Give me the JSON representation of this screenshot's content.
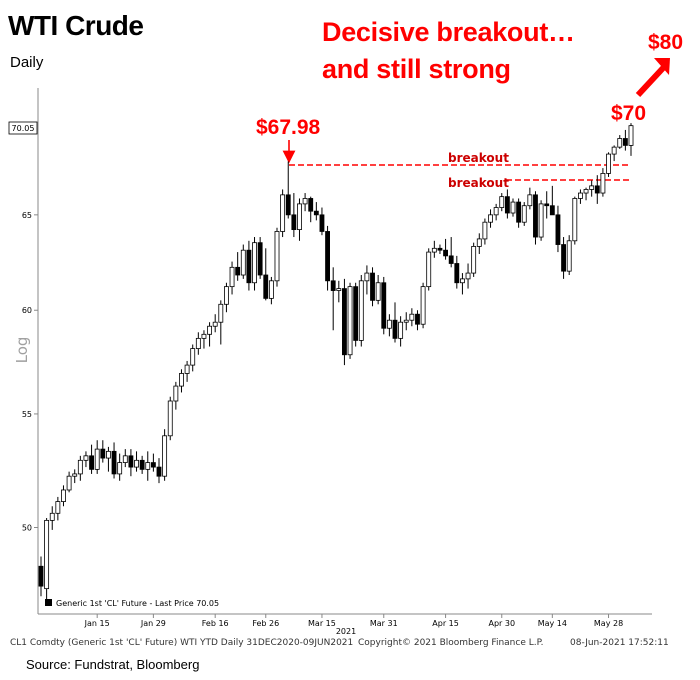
{
  "header": {
    "title": "WTI Crude",
    "subtitle": "Daily",
    "headline_line1": "Decisive breakout…",
    "headline_line2": "and still strong"
  },
  "annotations": {
    "target_80": "$80",
    "level_70": "$70",
    "peak_price": "$67.98",
    "breakout_upper": "breakout",
    "breakout_lower": "breakout",
    "last_price_tag": "70.05"
  },
  "legend": {
    "label": "Generic 1st 'CL' Future - Last Price 70.05"
  },
  "footer": {
    "left": "CL1 Comdty (Generic 1st 'CL' Future) WTI YTD  Daily 31DEC2020-09JUN2021",
    "center": "Copyright© 2021 Bloomberg Finance L.P.",
    "right": "08-Jun-2021 17:52:11"
  },
  "source": "Source: Fundstrat, Bloomberg",
  "colors": {
    "accent": "#ff0000",
    "candle_down": "#000000",
    "candle_up": "#ffffff"
  },
  "chart_data": {
    "type": "candlestick",
    "title": "WTI Crude",
    "subtitle": "Daily",
    "ylabel": "Log",
    "y_scale": "log",
    "ylim": [
      46.5,
      72.3
    ],
    "yticks": [
      50,
      55,
      60,
      65
    ],
    "x_tick_labels": [
      "Jan 15",
      "Jan 29",
      "Feb 16",
      "Feb 26",
      "Mar 15",
      "Mar 31",
      "Apr 15",
      "Apr 30",
      "May 14",
      "May 28"
    ],
    "x_year_label": "2021",
    "x_tick_index": [
      10,
      20,
      31,
      40,
      50,
      61,
      72,
      82,
      91,
      101
    ],
    "last_price": 70.05,
    "resistance_levels": [
      67.5,
      66.7
    ],
    "candles": [
      [
        48.4,
        48.8,
        47.2,
        47.6
      ],
      [
        47.5,
        50.4,
        47.0,
        50.3
      ],
      [
        50.3,
        50.9,
        49.9,
        50.6
      ],
      [
        50.6,
        51.3,
        50.3,
        51.1
      ],
      [
        51.1,
        51.8,
        50.9,
        51.6
      ],
      [
        51.6,
        52.4,
        51.5,
        52.2
      ],
      [
        52.2,
        52.5,
        51.9,
        52.3
      ],
      [
        52.3,
        53.1,
        52.0,
        52.9
      ],
      [
        52.9,
        53.3,
        52.6,
        53.1
      ],
      [
        53.1,
        53.6,
        52.3,
        52.5
      ],
      [
        52.5,
        53.8,
        52.3,
        53.4
      ],
      [
        53.4,
        53.8,
        52.8,
        53.0
      ],
      [
        53.0,
        53.5,
        52.4,
        53.3
      ],
      [
        53.3,
        53.7,
        52.1,
        52.3
      ],
      [
        52.3,
        53.2,
        52.0,
        52.8
      ],
      [
        52.8,
        53.4,
        52.6,
        53.1
      ],
      [
        53.1,
        53.4,
        52.2,
        52.6
      ],
      [
        52.6,
        53.3,
        52.4,
        52.9
      ],
      [
        52.9,
        53.1,
        52.3,
        52.5
      ],
      [
        52.5,
        53.3,
        52.0,
        52.8
      ],
      [
        52.8,
        53.2,
        52.4,
        52.6
      ],
      [
        52.6,
        53.0,
        51.9,
        52.2
      ],
      [
        52.2,
        54.3,
        52.0,
        54.0
      ],
      [
        54.0,
        55.8,
        53.8,
        55.6
      ],
      [
        55.6,
        56.5,
        55.2,
        56.3
      ],
      [
        56.3,
        57.1,
        56.0,
        56.9
      ],
      [
        56.9,
        57.5,
        56.5,
        57.3
      ],
      [
        57.3,
        58.3,
        57.0,
        58.1
      ],
      [
        58.1,
        58.9,
        57.8,
        58.6
      ],
      [
        58.6,
        59.0,
        58.1,
        58.8
      ],
      [
        58.8,
        59.4,
        58.2,
        59.2
      ],
      [
        59.2,
        59.8,
        58.9,
        59.4
      ],
      [
        59.4,
        60.5,
        58.3,
        60.3
      ],
      [
        60.3,
        61.4,
        59.9,
        61.2
      ],
      [
        61.2,
        62.5,
        60.8,
        62.2
      ],
      [
        62.2,
        63.0,
        61.5,
        61.8
      ],
      [
        61.8,
        63.4,
        61.6,
        63.1
      ],
      [
        63.1,
        63.6,
        61.0,
        61.4
      ],
      [
        61.4,
        63.8,
        61.0,
        63.5
      ],
      [
        63.5,
        63.8,
        61.6,
        61.8
      ],
      [
        61.8,
        63.2,
        60.5,
        60.6
      ],
      [
        60.6,
        61.7,
        60.3,
        61.5
      ],
      [
        61.5,
        64.3,
        61.2,
        64.1
      ],
      [
        64.1,
        66.4,
        63.8,
        66.1
      ],
      [
        66.1,
        67.98,
        64.8,
        65.0
      ],
      [
        65.0,
        66.2,
        63.8,
        64.2
      ],
      [
        64.2,
        65.9,
        63.6,
        65.6
      ],
      [
        65.6,
        66.2,
        65.2,
        65.9
      ],
      [
        65.9,
        66.0,
        64.6,
        65.2
      ],
      [
        65.2,
        65.7,
        64.7,
        65.0
      ],
      [
        65.0,
        65.4,
        63.9,
        64.1
      ],
      [
        64.1,
        64.4,
        61.0,
        61.5
      ],
      [
        61.5,
        62.2,
        59.0,
        61.0
      ],
      [
        61.0,
        61.5,
        60.4,
        61.1
      ],
      [
        61.1,
        61.6,
        57.3,
        57.8
      ],
      [
        57.8,
        61.4,
        57.6,
        61.2
      ],
      [
        61.2,
        61.4,
        58.2,
        58.5
      ],
      [
        58.5,
        61.8,
        58.2,
        61.5
      ],
      [
        61.5,
        62.3,
        60.8,
        61.9
      ],
      [
        61.9,
        62.2,
        60.2,
        60.5
      ],
      [
        60.5,
        61.8,
        60.3,
        61.4
      ],
      [
        61.4,
        61.7,
        58.8,
        59.1
      ],
      [
        59.1,
        59.8,
        58.7,
        59.5
      ],
      [
        59.5,
        60.4,
        58.4,
        58.6
      ],
      [
        58.6,
        59.7,
        58.2,
        59.4
      ],
      [
        59.4,
        59.9,
        59.0,
        59.5
      ],
      [
        59.5,
        60.1,
        59.2,
        59.8
      ],
      [
        59.8,
        60.0,
        59.0,
        59.3
      ],
      [
        59.3,
        61.4,
        59.1,
        61.2
      ],
      [
        61.2,
        63.2,
        61.0,
        63.0
      ],
      [
        63.0,
        63.6,
        62.7,
        63.2
      ],
      [
        63.2,
        63.4,
        62.9,
        63.1
      ],
      [
        63.1,
        63.7,
        62.6,
        62.8
      ],
      [
        62.8,
        63.8,
        62.2,
        62.4
      ],
      [
        62.4,
        62.8,
        61.1,
        61.4
      ],
      [
        61.4,
        61.9,
        60.8,
        61.6
      ],
      [
        61.6,
        62.4,
        61.1,
        61.9
      ],
      [
        61.9,
        63.5,
        61.7,
        63.3
      ],
      [
        63.3,
        64.0,
        62.9,
        63.7
      ],
      [
        63.7,
        64.8,
        63.4,
        64.6
      ],
      [
        64.6,
        65.3,
        64.3,
        65.0
      ],
      [
        65.0,
        65.6,
        64.7,
        65.4
      ],
      [
        65.4,
        66.2,
        65.2,
        66.0
      ],
      [
        66.0,
        66.4,
        64.8,
        65.1
      ],
      [
        65.1,
        65.9,
        64.9,
        65.7
      ],
      [
        65.7,
        65.9,
        64.3,
        64.6
      ],
      [
        64.6,
        65.7,
        64.4,
        65.5
      ],
      [
        65.5,
        66.5,
        65.3,
        66.1
      ],
      [
        66.1,
        66.3,
        63.4,
        63.8
      ],
      [
        63.8,
        65.8,
        63.6,
        65.6
      ],
      [
        65.6,
        66.3,
        64.8,
        65.5
      ],
      [
        65.5,
        66.6,
        65.1,
        65.0
      ],
      [
        65.0,
        65.5,
        63.0,
        63.4
      ],
      [
        63.4,
        63.8,
        61.6,
        62.0
      ],
      [
        62.0,
        63.9,
        61.8,
        63.6
      ],
      [
        63.6,
        66.0,
        63.4,
        65.9
      ],
      [
        65.9,
        66.4,
        65.6,
        66.2
      ],
      [
        66.2,
        66.5,
        65.8,
        66.4
      ],
      [
        66.4,
        66.9,
        66.0,
        66.6
      ],
      [
        66.6,
        67.2,
        65.6,
        66.2
      ],
      [
        66.2,
        67.6,
        66.0,
        67.3
      ],
      [
        67.3,
        68.5,
        67.1,
        68.4
      ],
      [
        68.4,
        68.9,
        68.0,
        68.8
      ],
      [
        68.8,
        69.5,
        68.7,
        69.3
      ],
      [
        69.3,
        69.8,
        68.6,
        68.9
      ],
      [
        68.9,
        70.2,
        68.3,
        70.05
      ]
    ]
  }
}
